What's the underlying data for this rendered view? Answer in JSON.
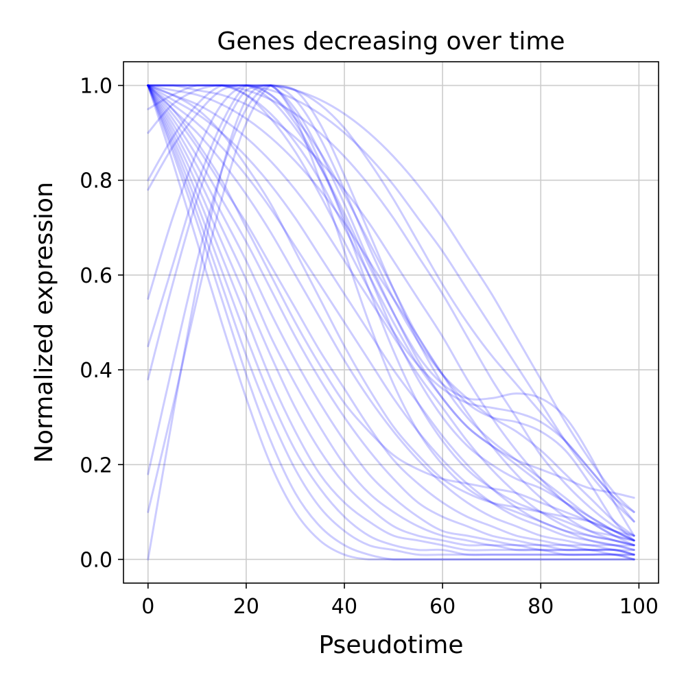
{
  "chart_data": {
    "type": "line",
    "title": "Genes decreasing over time",
    "xlabel": "Pseudotime",
    "ylabel": "Normalized expression",
    "xlim": [
      -5,
      104
    ],
    "ylim": [
      -0.05,
      1.05
    ],
    "xticks": [
      0,
      20,
      40,
      60,
      80,
      100
    ],
    "xtick_labels": [
      "0",
      "20",
      "40",
      "60",
      "80",
      "100"
    ],
    "yticks": [
      0.0,
      0.2,
      0.4,
      0.6,
      0.8,
      1.0
    ],
    "ytick_labels": [
      "0.0",
      "0.2",
      "0.4",
      "0.6",
      "0.8",
      "1.0"
    ],
    "grid": true,
    "line_color": "#0000ff",
    "line_alpha": 0.2,
    "x": [
      0,
      5,
      10,
      15,
      20,
      25,
      30,
      35,
      40,
      45,
      50,
      55,
      60,
      65,
      70,
      75,
      80,
      85,
      90,
      95,
      99
    ],
    "series": [
      {
        "values": [
          1.0,
          0.84,
          0.67,
          0.5,
          0.34,
          0.2,
          0.1,
          0.04,
          0.01,
          0.0,
          0.0,
          0.0,
          0.0,
          0.0,
          0.0,
          0.0,
          0.0,
          0.0,
          0.0,
          0.0,
          0.0
        ]
      },
      {
        "values": [
          1.0,
          0.86,
          0.71,
          0.55,
          0.39,
          0.25,
          0.14,
          0.07,
          0.03,
          0.01,
          0.0,
          0.0,
          0.0,
          0.0,
          0.0,
          0.0,
          0.0,
          0.0,
          0.0,
          0.0,
          0.0
        ]
      },
      {
        "values": [
          1.0,
          0.87,
          0.73,
          0.58,
          0.43,
          0.3,
          0.19,
          0.11,
          0.06,
          0.03,
          0.02,
          0.01,
          0.01,
          0.01,
          0.01,
          0.01,
          0.01,
          0.01,
          0.01,
          0.01,
          0.0
        ]
      },
      {
        "values": [
          1.0,
          0.88,
          0.75,
          0.61,
          0.47,
          0.34,
          0.23,
          0.15,
          0.09,
          0.05,
          0.03,
          0.02,
          0.02,
          0.01,
          0.01,
          0.01,
          0.01,
          0.01,
          0.01,
          0.01,
          0.01
        ]
      },
      {
        "values": [
          1.0,
          0.89,
          0.77,
          0.64,
          0.51,
          0.38,
          0.27,
          0.18,
          0.12,
          0.08,
          0.05,
          0.04,
          0.03,
          0.02,
          0.02,
          0.02,
          0.02,
          0.01,
          0.01,
          0.01,
          0.0
        ]
      },
      {
        "values": [
          1.0,
          0.9,
          0.79,
          0.67,
          0.55,
          0.43,
          0.32,
          0.23,
          0.16,
          0.11,
          0.07,
          0.05,
          0.04,
          0.03,
          0.03,
          0.02,
          0.02,
          0.02,
          0.02,
          0.01,
          0.01
        ]
      },
      {
        "values": [
          1.0,
          0.91,
          0.81,
          0.7,
          0.59,
          0.47,
          0.37,
          0.28,
          0.2,
          0.14,
          0.1,
          0.07,
          0.05,
          0.04,
          0.03,
          0.03,
          0.02,
          0.02,
          0.02,
          0.02,
          0.01
        ]
      },
      {
        "values": [
          1.0,
          0.92,
          0.83,
          0.73,
          0.63,
          0.52,
          0.42,
          0.33,
          0.25,
          0.18,
          0.13,
          0.09,
          0.06,
          0.05,
          0.04,
          0.03,
          0.03,
          0.02,
          0.02,
          0.02,
          0.01
        ]
      },
      {
        "values": [
          1.0,
          0.93,
          0.85,
          0.76,
          0.67,
          0.57,
          0.47,
          0.38,
          0.3,
          0.23,
          0.17,
          0.12,
          0.09,
          0.07,
          0.05,
          0.04,
          0.03,
          0.03,
          0.02,
          0.02,
          0.01
        ]
      },
      {
        "values": [
          1.0,
          0.94,
          0.87,
          0.79,
          0.71,
          0.62,
          0.53,
          0.44,
          0.36,
          0.28,
          0.21,
          0.16,
          0.12,
          0.09,
          0.07,
          0.05,
          0.04,
          0.03,
          0.03,
          0.02,
          0.02
        ]
      },
      {
        "values": [
          1.0,
          0.95,
          0.9,
          0.84,
          0.77,
          0.69,
          0.6,
          0.51,
          0.42,
          0.34,
          0.27,
          0.21,
          0.16,
          0.12,
          0.09,
          0.07,
          0.05,
          0.04,
          0.03,
          0.03,
          0.02
        ]
      },
      {
        "values": [
          1.0,
          0.96,
          0.92,
          0.87,
          0.81,
          0.74,
          0.66,
          0.58,
          0.5,
          0.42,
          0.34,
          0.27,
          0.21,
          0.16,
          0.12,
          0.09,
          0.07,
          0.05,
          0.04,
          0.03,
          0.02
        ]
      },
      {
        "values": [
          1.0,
          0.97,
          0.94,
          0.9,
          0.85,
          0.79,
          0.72,
          0.64,
          0.56,
          0.48,
          0.4,
          0.33,
          0.26,
          0.2,
          0.15,
          0.11,
          0.08,
          0.06,
          0.04,
          0.03,
          0.03
        ]
      },
      {
        "values": [
          1.0,
          0.98,
          0.96,
          0.93,
          0.89,
          0.84,
          0.78,
          0.71,
          0.63,
          0.55,
          0.47,
          0.39,
          0.32,
          0.25,
          0.19,
          0.14,
          0.1,
          0.07,
          0.05,
          0.04,
          0.03
        ]
      },
      {
        "values": [
          1.0,
          0.99,
          0.98,
          0.96,
          0.93,
          0.89,
          0.84,
          0.78,
          0.71,
          0.63,
          0.55,
          0.47,
          0.39,
          0.31,
          0.24,
          0.18,
          0.13,
          0.09,
          0.06,
          0.04,
          0.03
        ]
      },
      {
        "values": [
          1.0,
          1.0,
          0.99,
          0.98,
          0.96,
          0.93,
          0.89,
          0.84,
          0.78,
          0.71,
          0.63,
          0.55,
          0.47,
          0.38,
          0.3,
          0.23,
          0.17,
          0.12,
          0.08,
          0.05,
          0.04
        ]
      },
      {
        "values": [
          1.0,
          1.0,
          1.0,
          1.0,
          0.99,
          0.97,
          0.94,
          0.9,
          0.85,
          0.79,
          0.72,
          0.64,
          0.56,
          0.47,
          0.38,
          0.3,
          0.22,
          0.16,
          0.11,
          0.07,
          0.05
        ]
      },
      {
        "values": [
          1.0,
          1.0,
          1.0,
          1.0,
          1.0,
          0.99,
          0.97,
          0.94,
          0.9,
          0.85,
          0.79,
          0.72,
          0.65,
          0.57,
          0.49,
          0.41,
          0.33,
          0.25,
          0.18,
          0.12,
          0.08
        ]
      },
      {
        "values": [
          1.0,
          1.0,
          1.0,
          1.0,
          1.0,
          1.0,
          0.99,
          0.97,
          0.94,
          0.9,
          0.85,
          0.79,
          0.72,
          0.64,
          0.56,
          0.47,
          0.38,
          0.29,
          0.21,
          0.14,
          0.1
        ]
      },
      {
        "values": [
          0.95,
          0.98,
          1.0,
          1.0,
          0.98,
          0.94,
          0.88,
          0.8,
          0.7,
          0.6,
          0.5,
          0.41,
          0.34,
          0.28,
          0.24,
          0.21,
          0.19,
          0.17,
          0.15,
          0.14,
          0.13
        ]
      },
      {
        "values": [
          0.9,
          0.96,
          0.99,
          1.0,
          0.98,
          0.93,
          0.86,
          0.77,
          0.67,
          0.57,
          0.48,
          0.41,
          0.36,
          0.33,
          0.32,
          0.31,
          0.29,
          0.25,
          0.19,
          0.13,
          0.1
        ]
      },
      {
        "values": [
          0.8,
          0.89,
          0.96,
          1.0,
          1.0,
          0.97,
          0.91,
          0.83,
          0.73,
          0.62,
          0.52,
          0.43,
          0.37,
          0.34,
          0.34,
          0.35,
          0.34,
          0.3,
          0.22,
          0.12,
          0.05
        ]
      },
      {
        "values": [
          0.78,
          0.87,
          0.94,
          0.99,
          1.0,
          0.98,
          0.93,
          0.86,
          0.77,
          0.67,
          0.57,
          0.47,
          0.39,
          0.33,
          0.3,
          0.29,
          0.27,
          0.23,
          0.16,
          0.08,
          0.04
        ]
      },
      {
        "values": [
          0.55,
          0.72,
          0.86,
          0.96,
          1.0,
          0.98,
          0.92,
          0.83,
          0.72,
          0.6,
          0.48,
          0.38,
          0.3,
          0.24,
          0.2,
          0.17,
          0.15,
          0.12,
          0.09,
          0.06,
          0.04
        ]
      },
      {
        "values": [
          0.45,
          0.62,
          0.79,
          0.92,
          1.0,
          1.0,
          0.95,
          0.86,
          0.75,
          0.63,
          0.52,
          0.42,
          0.34,
          0.28,
          0.24,
          0.2,
          0.16,
          0.12,
          0.08,
          0.05,
          0.03
        ]
      },
      {
        "values": [
          0.38,
          0.58,
          0.76,
          0.9,
          0.99,
          1.0,
          0.94,
          0.84,
          0.71,
          0.57,
          0.44,
          0.33,
          0.25,
          0.19,
          0.15,
          0.12,
          0.1,
          0.08,
          0.06,
          0.05,
          0.04
        ]
      },
      {
        "values": [
          0.18,
          0.41,
          0.63,
          0.82,
          0.95,
          1.0,
          0.97,
          0.89,
          0.78,
          0.66,
          0.55,
          0.46,
          0.39,
          0.34,
          0.3,
          0.27,
          0.23,
          0.18,
          0.13,
          0.08,
          0.05
        ]
      },
      {
        "values": [
          0.1,
          0.32,
          0.55,
          0.76,
          0.92,
          1.0,
          0.99,
          0.92,
          0.81,
          0.69,
          0.57,
          0.46,
          0.37,
          0.3,
          0.25,
          0.21,
          0.17,
          0.13,
          0.09,
          0.06,
          0.04
        ]
      },
      {
        "values": [
          0.0,
          0.3,
          0.58,
          0.82,
          0.97,
          1.0,
          0.93,
          0.8,
          0.65,
          0.5,
          0.37,
          0.27,
          0.2,
          0.15,
          0.12,
          0.1,
          0.08,
          0.06,
          0.05,
          0.04,
          0.03
        ]
      },
      {
        "values": [
          1.0,
          1.0,
          1.0,
          1.0,
          1.0,
          1.0,
          0.99,
          0.96,
          0.91,
          0.84,
          0.76,
          0.67,
          0.58,
          0.5,
          0.43,
          0.37,
          0.31,
          0.25,
          0.19,
          0.13,
          0.08
        ]
      },
      {
        "values": [
          1.0,
          0.98,
          0.95,
          0.9,
          0.83,
          0.75,
          0.65,
          0.55,
          0.45,
          0.36,
          0.28,
          0.22,
          0.17,
          0.14,
          0.12,
          0.11,
          0.1,
          0.09,
          0.08,
          0.06,
          0.04
        ]
      },
      {
        "values": [
          1.0,
          0.95,
          0.88,
          0.8,
          0.7,
          0.6,
          0.5,
          0.41,
          0.33,
          0.27,
          0.22,
          0.19,
          0.17,
          0.16,
          0.15,
          0.14,
          0.12,
          0.1,
          0.08,
          0.06,
          0.05
        ]
      }
    ]
  }
}
